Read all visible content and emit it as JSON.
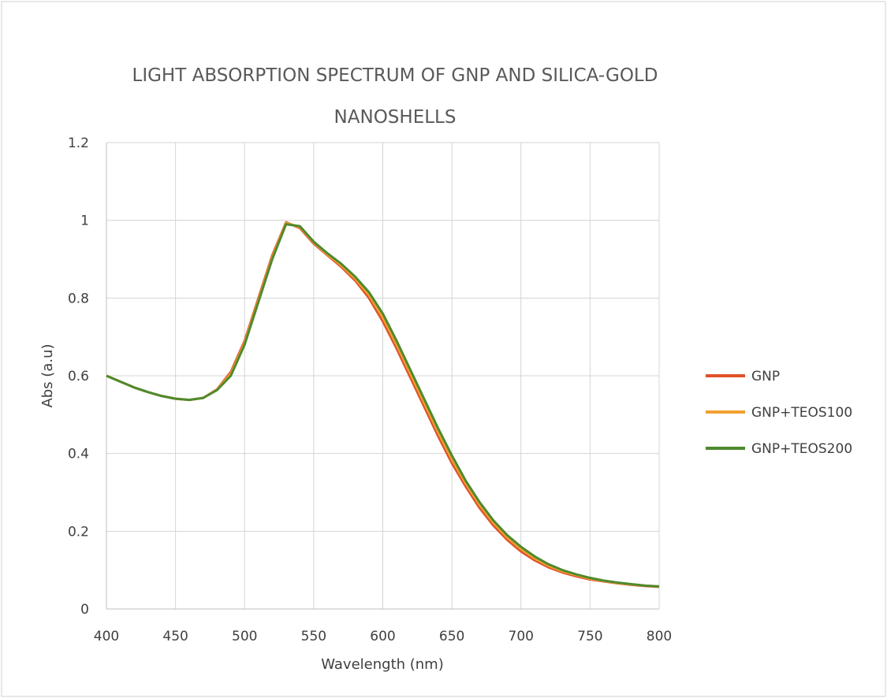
{
  "chart_data": {
    "type": "line",
    "title": [
      "LIGHT ABSORPTION SPECTRUM OF GNP AND SILICA-GOLD",
      "NANOSHELLS"
    ],
    "x_label": "Wavelength (nm)",
    "y_label": "Abs (a.u)",
    "x": [
      400,
      410,
      420,
      430,
      440,
      450,
      460,
      470,
      480,
      490,
      500,
      510,
      520,
      530,
      540,
      550,
      560,
      570,
      580,
      590,
      600,
      610,
      620,
      630,
      640,
      650,
      660,
      670,
      680,
      690,
      700,
      710,
      720,
      730,
      740,
      750,
      760,
      770,
      780,
      790,
      800
    ],
    "series": [
      {
        "name": "GNP",
        "color": "#e0522a",
        "values": [
          0.6,
          0.585,
          0.57,
          0.558,
          0.548,
          0.541,
          0.538,
          0.543,
          0.565,
          0.61,
          0.69,
          0.8,
          0.91,
          0.995,
          0.98,
          0.94,
          0.91,
          0.88,
          0.845,
          0.8,
          0.74,
          0.67,
          0.595,
          0.52,
          0.445,
          0.375,
          0.315,
          0.26,
          0.215,
          0.178,
          0.148,
          0.125,
          0.107,
          0.094,
          0.084,
          0.076,
          0.071,
          0.066,
          0.062,
          0.059,
          0.057
        ]
      },
      {
        "name": "GNP+TEOS100",
        "color": "#f0a030",
        "values": [
          0.6,
          0.585,
          0.57,
          0.558,
          0.548,
          0.541,
          0.538,
          0.543,
          0.564,
          0.605,
          0.685,
          0.795,
          0.905,
          0.993,
          0.983,
          0.943,
          0.912,
          0.884,
          0.85,
          0.808,
          0.75,
          0.68,
          0.605,
          0.53,
          0.455,
          0.385,
          0.323,
          0.268,
          0.222,
          0.184,
          0.154,
          0.13,
          0.111,
          0.097,
          0.087,
          0.078,
          0.072,
          0.067,
          0.063,
          0.06,
          0.058
        ]
      },
      {
        "name": "GNP+TEOS200",
        "color": "#4e8a2e",
        "values": [
          0.6,
          0.585,
          0.57,
          0.558,
          0.548,
          0.541,
          0.538,
          0.543,
          0.563,
          0.6,
          0.68,
          0.79,
          0.9,
          0.99,
          0.985,
          0.945,
          0.915,
          0.888,
          0.855,
          0.815,
          0.76,
          0.69,
          0.615,
          0.54,
          0.465,
          0.395,
          0.33,
          0.275,
          0.228,
          0.19,
          0.16,
          0.135,
          0.115,
          0.1,
          0.089,
          0.08,
          0.073,
          0.068,
          0.064,
          0.06,
          0.058
        ]
      }
    ],
    "xlim": [
      400,
      800
    ],
    "xticks": [
      400,
      450,
      500,
      550,
      600,
      650,
      700,
      750,
      800
    ],
    "ylim": [
      0,
      1.2
    ],
    "yticks": [
      0,
      0.2,
      0.4,
      0.6,
      0.8,
      1,
      1.2
    ],
    "grid": true,
    "legend": "right"
  }
}
